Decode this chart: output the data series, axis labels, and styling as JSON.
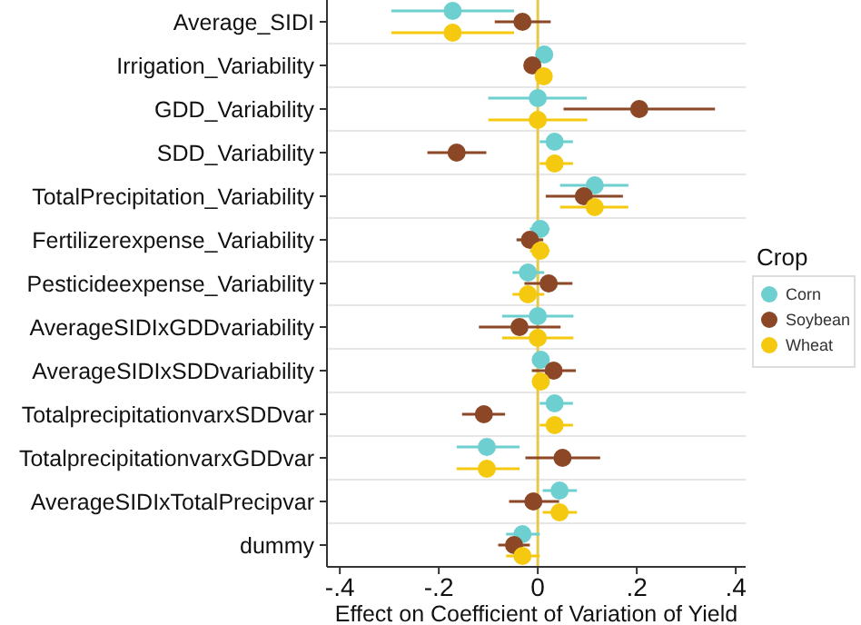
{
  "chart_data": {
    "type": "scatter",
    "orientation": "horizontal",
    "xlabel": "Effect on Coefficient of Variation of Yield",
    "legend_title": "Crop",
    "legend": "right",
    "grid": "y",
    "marker": "circle",
    "categories": [
      "Average_SIDI",
      "Irrigation_Variability",
      "GDD_Variability",
      "SDD_Variability",
      "TotalPrecipitation_Variability",
      "Fertilizerexpense_Variability",
      "Pesticideexpense_Variability",
      "AverageSIDIxGDDvariability",
      "AverageSIDIxSDDvariability",
      "TotalprecipitationvarxSDDvar",
      "TotalprecipitationvarxGDDvar",
      "AverageSIDIxTotalPrecipvar",
      "dummy"
    ],
    "xlim": [
      -0.426,
      0.42
    ],
    "xticks": [
      {
        "value": -0.4,
        "label": "-.4"
      },
      {
        "value": -0.2,
        "label": "-.2"
      },
      0,
      {
        "value": 0.2,
        "label": ".2"
      },
      {
        "value": 0.4,
        "label": ".4"
      }
    ],
    "ref_lines": [
      {
        "axis": "x",
        "value": 0,
        "color": "#e8c84a"
      }
    ],
    "series": [
      {
        "name": "Corn",
        "color": "#6dcfcf",
        "values": [
          -0.172,
          0.013,
          0,
          0.034,
          0.115,
          0.005,
          -0.02,
          0,
          0.006,
          0.034,
          -0.103,
          0.044,
          -0.031
        ],
        "errors": [
          [
            -0.296,
            -0.048
          ],
          null,
          [
            -0.1,
            0.099
          ],
          [
            0.004,
            0.071
          ],
          [
            0.045,
            0.183
          ],
          [
            -0.016,
            0.024
          ],
          [
            -0.051,
            0.013
          ],
          [
            -0.072,
            0.072
          ],
          [
            -0.009,
            0.021
          ],
          [
            0.004,
            0.071
          ],
          [
            -0.164,
            -0.037
          ],
          [
            0.01,
            0.079
          ],
          [
            -0.064,
            0.004
          ]
        ]
      },
      {
        "name": "Soybean",
        "color": "#8b4726",
        "values": [
          -0.031,
          -0.011,
          0.205,
          -0.164,
          0.093,
          -0.016,
          0.022,
          -0.037,
          0.032,
          -0.109,
          0.05,
          -0.009,
          -0.048
        ],
        "errors": [
          [
            -0.087,
            0.026
          ],
          null,
          [
            0.052,
            0.358
          ],
          [
            -0.223,
            -0.104
          ],
          [
            0.016,
            0.172
          ],
          [
            -0.043,
            0.011
          ],
          [
            -0.027,
            0.07
          ],
          [
            -0.119,
            0.046
          ],
          [
            -0.012,
            0.077
          ],
          [
            -0.153,
            -0.066
          ],
          [
            -0.025,
            0.126
          ],
          [
            -0.058,
            0.043
          ],
          [
            -0.08,
            -0.016
          ]
        ]
      },
      {
        "name": "Wheat",
        "color": "#f5c90f",
        "values": [
          -0.172,
          0.012,
          0,
          0.034,
          0.115,
          0.005,
          -0.02,
          0,
          0.006,
          0.034,
          -0.103,
          0.044,
          -0.031
        ],
        "errors": [
          [
            -0.296,
            -0.048
          ],
          null,
          [
            -0.1,
            0.1
          ],
          [
            0.004,
            0.071
          ],
          [
            0.045,
            0.183
          ],
          [
            -0.016,
            0.024
          ],
          [
            -0.051,
            0.013
          ],
          [
            -0.072,
            0.072
          ],
          [
            -0.009,
            0.021
          ],
          [
            0.004,
            0.071
          ],
          [
            -0.164,
            -0.037
          ],
          [
            0.01,
            0.079
          ],
          [
            -0.064,
            0.004
          ]
        ]
      }
    ]
  }
}
